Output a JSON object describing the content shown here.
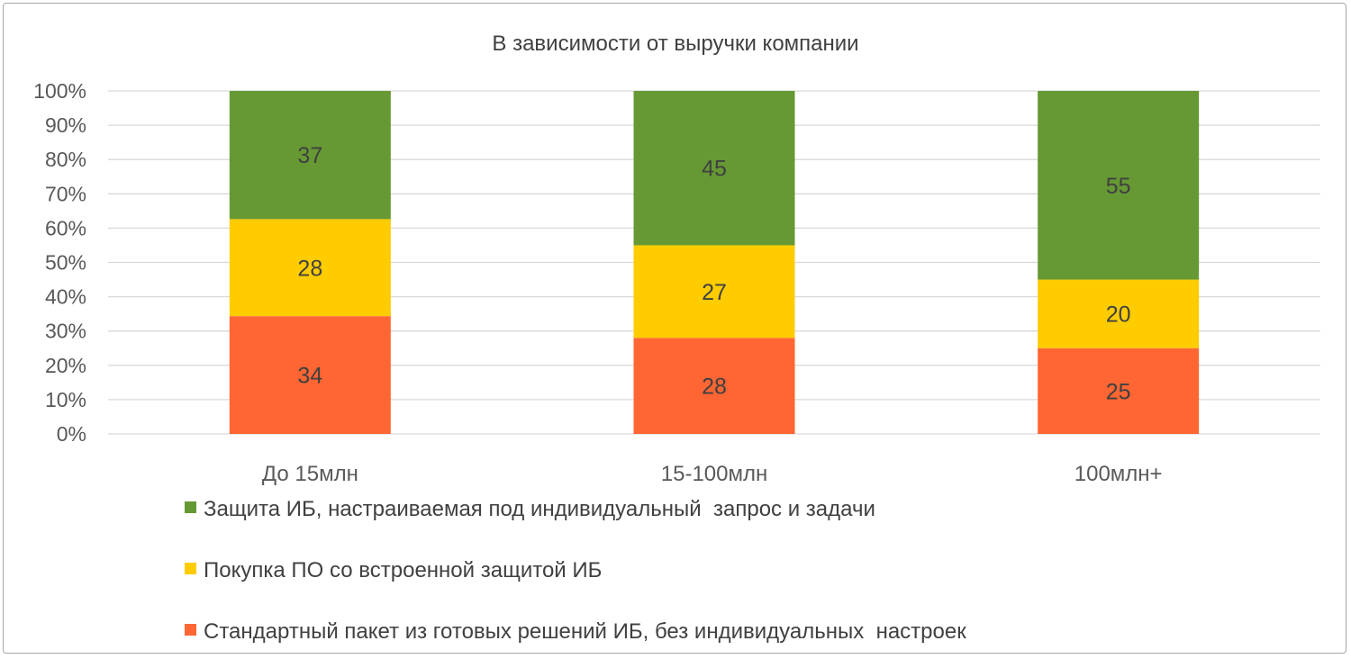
{
  "chart_data": {
    "type": "bar",
    "stacked": "percent",
    "title": "В зависимости от выручки компании",
    "categories": [
      "До 15млн",
      "15-100млн",
      "100млн+"
    ],
    "series": [
      {
        "name": "Стандартный пакет из готовых решений ИБ, без индивидуальных  настроек",
        "values": [
          34,
          28,
          25
        ],
        "color": "#ff6633"
      },
      {
        "name": "Покупка ПО со встроенной защитой ИБ",
        "values": [
          28,
          27,
          20
        ],
        "color": "#ffcc00"
      },
      {
        "name": "Защита ИБ, настраиваемая под индивидуальный  запрос и задачи",
        "values": [
          37,
          45,
          55
        ],
        "color": "#669933"
      }
    ],
    "ylim": [
      0,
      100
    ],
    "yticks": [
      "0%",
      "10%",
      "20%",
      "30%",
      "40%",
      "50%",
      "60%",
      "70%",
      "80%",
      "90%",
      "100%"
    ],
    "grid": true,
    "legend_position": "bottom",
    "legend_order": [
      2,
      1,
      0
    ]
  }
}
